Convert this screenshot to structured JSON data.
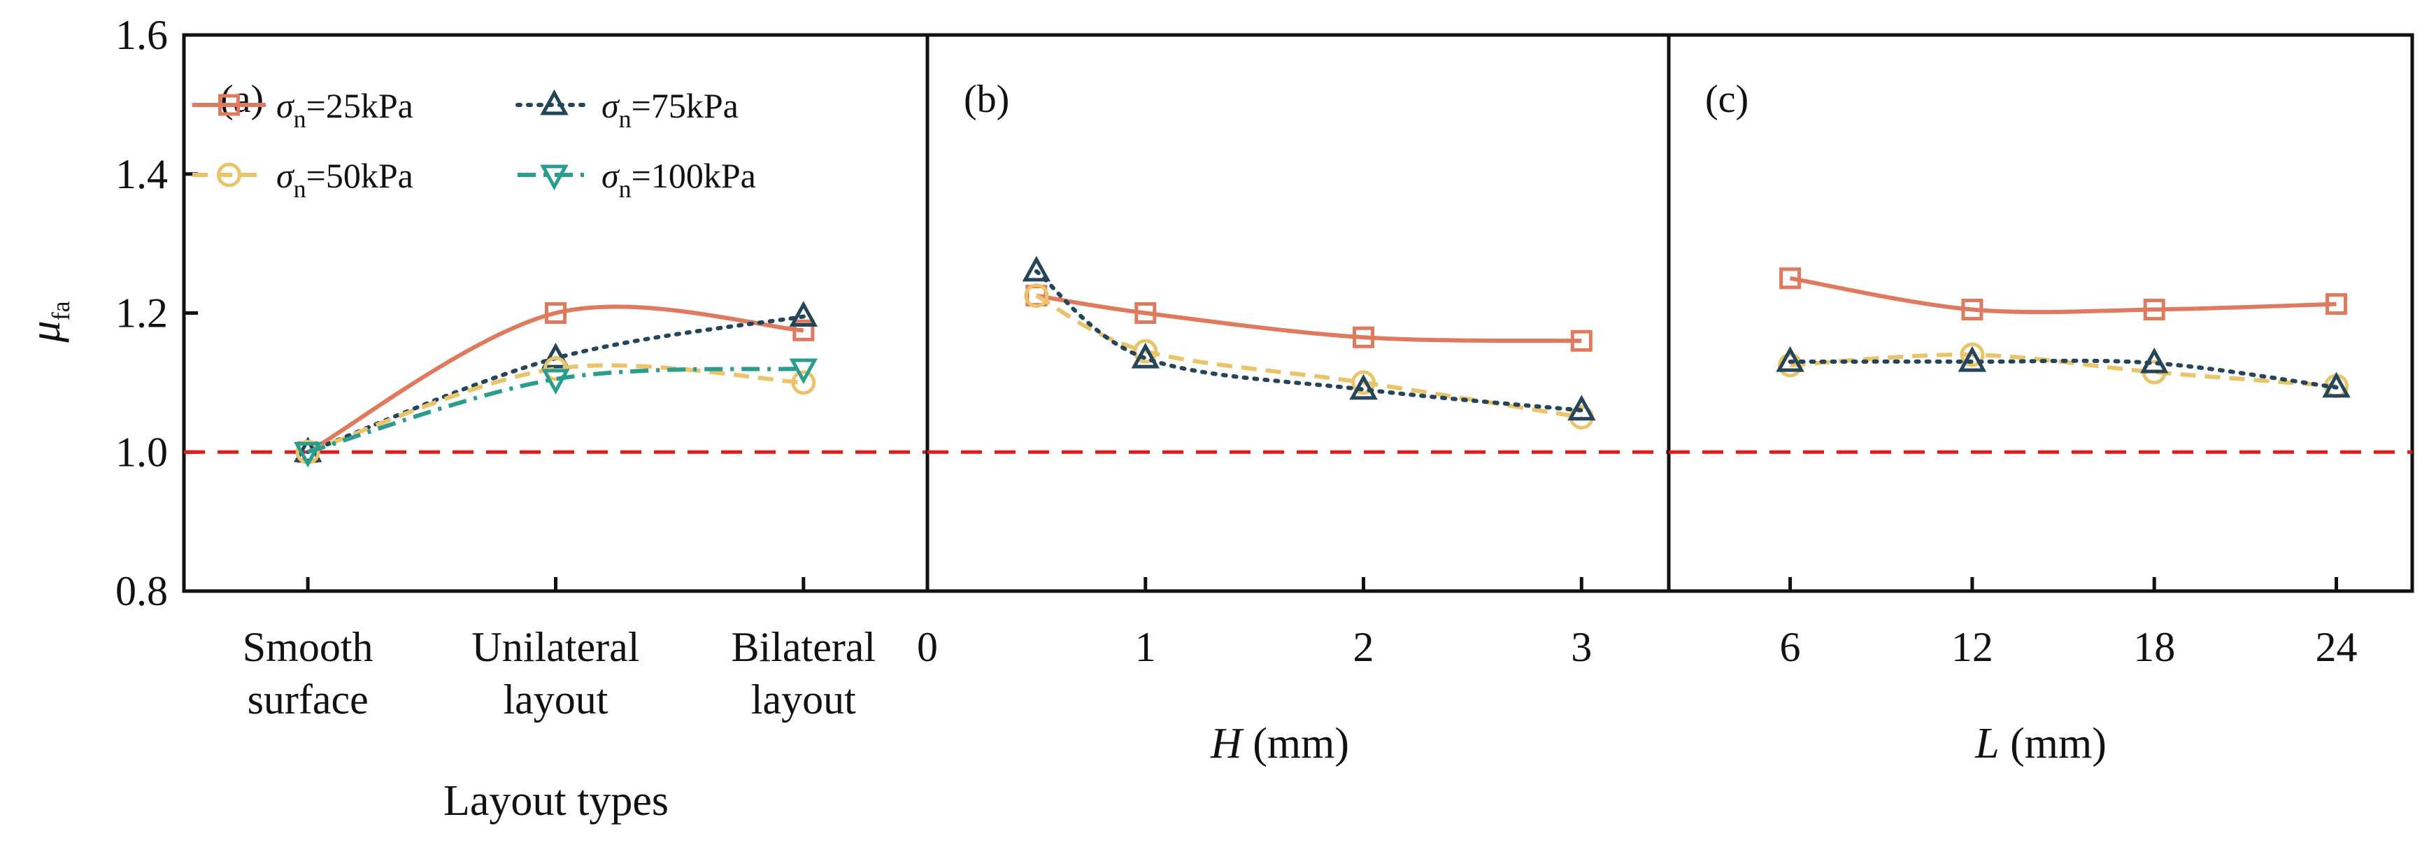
{
  "figure": {
    "y_axis_symbol": "μ",
    "y_axis_subscript": "fa",
    "y_ticks": [
      "0.8",
      "1.0",
      "1.2",
      "1.4",
      "1.6"
    ],
    "reference_line": {
      "y": 1.0,
      "color": "#e31a1c",
      "style": "dashed"
    }
  },
  "legend": {
    "symbol": "σ",
    "subscript": "n",
    "entries": [
      {
        "key": "s25",
        "label": "=25kPa",
        "color": "#e07a5f",
        "marker": "square",
        "dash": "solid"
      },
      {
        "key": "s75",
        "label": "=75kPa",
        "color": "#25465a",
        "marker": "triangle-up",
        "dash": "dotted"
      },
      {
        "key": "s50",
        "label": "=50kPa",
        "color": "#e9c46a",
        "marker": "circle",
        "dash": "dashed"
      },
      {
        "key": "s100",
        "label": "=100kPa",
        "color": "#2a9d8f",
        "marker": "triangle-down",
        "dash": "dashdot"
      }
    ]
  },
  "chart_data": [
    {
      "type": "line",
      "panel": "(a)",
      "x_type": "categorical",
      "categories": [
        [
          "Smooth",
          "surface"
        ],
        [
          "Unilateral",
          "layout"
        ],
        [
          "Bilateral",
          "layout"
        ]
      ],
      "xlabel": "Layout types",
      "ylabel": "μfa",
      "ylim": [
        0.8,
        1.6
      ],
      "series": [
        {
          "key": "s25",
          "name": "σn=25kPa",
          "values": [
            1.0,
            1.2,
            1.175
          ]
        },
        {
          "key": "s75",
          "name": "σn=75kPa",
          "values": [
            1.0,
            1.135,
            1.195
          ]
        },
        {
          "key": "s50",
          "name": "σn=50kPa",
          "values": [
            1.0,
            1.12,
            1.1
          ]
        },
        {
          "key": "s100",
          "name": "σn=100kPa",
          "values": [
            1.0,
            1.105,
            1.12
          ]
        }
      ]
    },
    {
      "type": "line",
      "panel": "(b)",
      "x_type": "numeric",
      "xlabel_var": "H",
      "xlabel_unit": " (mm)",
      "xlim": [
        0,
        3.4
      ],
      "xticks": [
        0,
        1,
        2,
        3
      ],
      "ylim": [
        0.8,
        1.6
      ],
      "series": [
        {
          "key": "s25",
          "name": "σn=25kPa",
          "x": [
            0.5,
            1,
            2,
            3
          ],
          "values": [
            1.225,
            1.2,
            1.165,
            1.16
          ]
        },
        {
          "key": "s50",
          "name": "σn=50kPa",
          "x": [
            0.5,
            1,
            2,
            3
          ],
          "values": [
            1.225,
            1.145,
            1.1,
            1.05
          ]
        },
        {
          "key": "s75",
          "name": "σn=75kPa",
          "x": [
            0.5,
            1,
            2,
            3
          ],
          "values": [
            1.26,
            1.135,
            1.09,
            1.06
          ]
        }
      ]
    },
    {
      "type": "line",
      "panel": "(c)",
      "x_type": "numeric",
      "xlabel_var": "L",
      "xlabel_unit": " (mm)",
      "xlim": [
        2,
        26.5
      ],
      "xticks": [
        6,
        12,
        18,
        24
      ],
      "ylim": [
        0.8,
        1.6
      ],
      "series": [
        {
          "key": "s25",
          "name": "σn=25kPa",
          "x": [
            6,
            12,
            18,
            24
          ],
          "values": [
            1.25,
            1.205,
            1.205,
            1.213
          ]
        },
        {
          "key": "s50",
          "name": "σn=50kPa",
          "x": [
            6,
            12,
            18,
            24
          ],
          "values": [
            1.125,
            1.14,
            1.115,
            1.095
          ]
        },
        {
          "key": "s75",
          "name": "σn=75kPa",
          "x": [
            6,
            12,
            18,
            24
          ],
          "values": [
            1.13,
            1.13,
            1.128,
            1.093
          ]
        }
      ]
    }
  ]
}
